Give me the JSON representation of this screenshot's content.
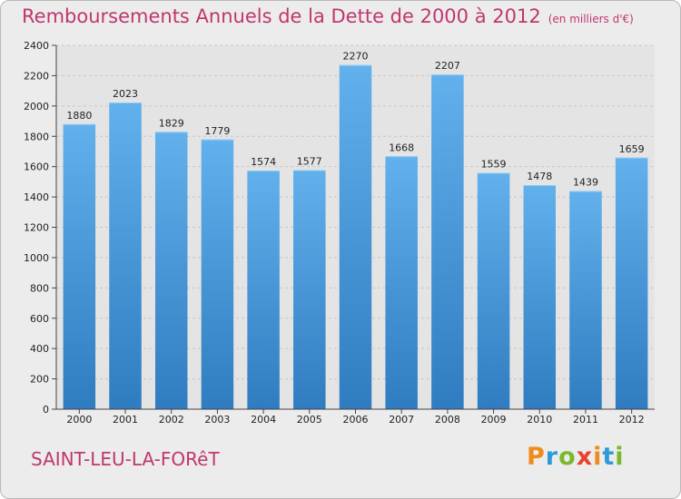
{
  "chart_data": {
    "type": "bar",
    "title": "Remboursements Annuels de la Dette de 2000 à 2012",
    "unit_note": "(en milliers d'€)",
    "categories": [
      "2000",
      "2001",
      "2002",
      "2003",
      "2004",
      "2005",
      "2006",
      "2007",
      "2008",
      "2009",
      "2010",
      "2011",
      "2012"
    ],
    "values": [
      1880,
      2023,
      1829,
      1779,
      1574,
      1577,
      2270,
      1668,
      2207,
      1559,
      1478,
      1439,
      1659
    ],
    "ylim": [
      0,
      2400
    ],
    "yticks": [
      0,
      200,
      400,
      600,
      800,
      1000,
      1200,
      1400,
      1600,
      1800,
      2000,
      2200,
      2400
    ],
    "grid": true,
    "bar_color": "#3f8fd2",
    "title_color": "#c0366e"
  },
  "footer": {
    "city": "SAINT-LEU-LA-FORêT",
    "logo_letters": [
      "P",
      "r",
      "o",
      "x",
      "i",
      "t",
      "i"
    ],
    "logo_colors": [
      "#f08a1c",
      "#2e9ad6",
      "#7ab929",
      "#e8412f",
      "#f08a1c",
      "#2e9ad6",
      "#7ab929"
    ]
  }
}
